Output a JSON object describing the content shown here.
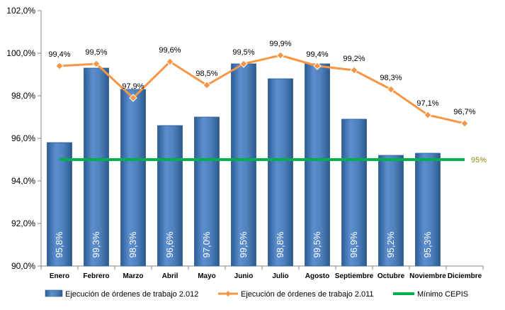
{
  "chart_data": {
    "type": "bar",
    "categories": [
      "Enero",
      "Febrero",
      "Marzo",
      "Abril",
      "Mayo",
      "Junio",
      "Julio",
      "Agosto",
      "Septiembre",
      "Octubre",
      "Noviembre",
      "Diciembre"
    ],
    "series": [
      {
        "name": "Ejecución de órdenes de trabajo 2.012",
        "type": "bar",
        "values": [
          95.8,
          99.3,
          98.3,
          96.6,
          97.0,
          99.5,
          98.8,
          99.5,
          96.9,
          95.2,
          95.3,
          null
        ],
        "labels": [
          "95,8%",
          "99,3%",
          "98,3%",
          "96,6%",
          "97,0%",
          "99,5%",
          "98,8%",
          "99,5%",
          "96,9%",
          "95,2%",
          "95,3%",
          ""
        ],
        "color": "#4f81bd"
      },
      {
        "name": "Ejecución de órdenes de trabajo 2.011",
        "type": "line",
        "values": [
          99.4,
          99.5,
          97.9,
          99.6,
          98.5,
          99.5,
          99.9,
          99.4,
          99.2,
          98.3,
          97.1,
          96.7
        ],
        "labels": [
          "99,4%",
          "99,5%",
          "97,9%",
          "99,6%",
          "98,5%",
          "99,5%",
          "99,9%",
          "99,4%",
          "99,2%",
          "98,3%",
          "97,1%",
          "96,7%"
        ],
        "color": "#f79646"
      },
      {
        "name": "Mínimo CEPIS",
        "type": "line",
        "value": 95.0,
        "label": "95%",
        "color": "#00b050"
      }
    ],
    "yticks": [
      "90,0%",
      "92,0%",
      "94,0%",
      "96,0%",
      "98,0%",
      "100,0%",
      "102,0%"
    ],
    "ylim": [
      90,
      102
    ],
    "ystep": 2,
    "grid": false,
    "legend_position": "bottom",
    "title": "",
    "xlabel": "",
    "ylabel": ""
  }
}
